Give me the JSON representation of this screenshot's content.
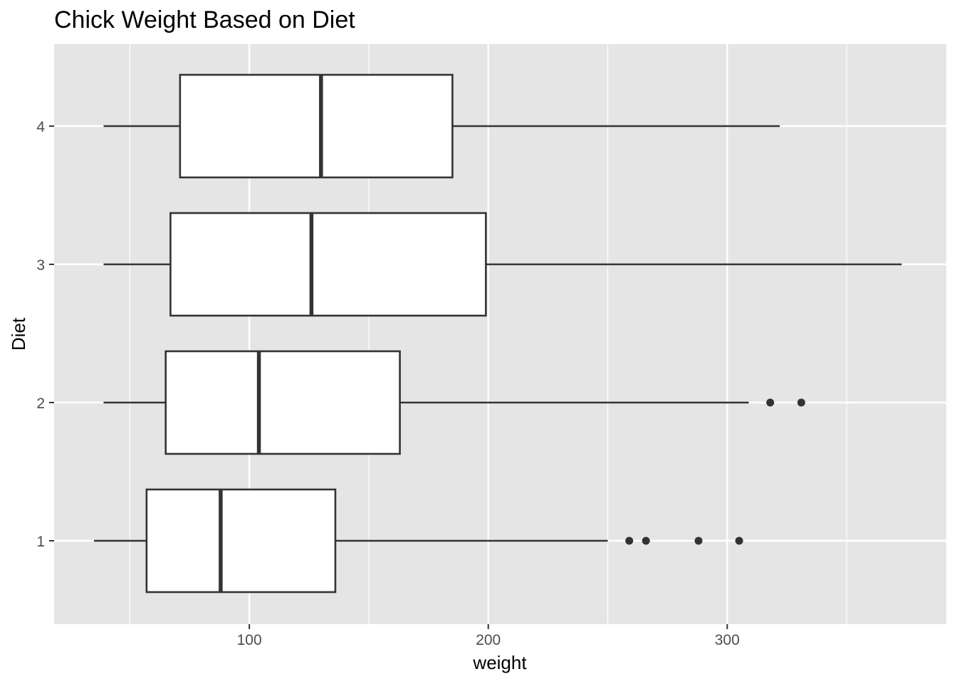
{
  "chart_data": {
    "type": "boxplot",
    "orientation": "horizontal",
    "title": "Chick Weight Based on Diet",
    "xlabel": "weight",
    "ylabel": "Diet",
    "xlim": [
      18.3,
      391.7
    ],
    "x_ticks": [
      100,
      200,
      300
    ],
    "x_minor_gridlines": [
      50,
      150,
      250,
      350
    ],
    "grid": true,
    "colors": {
      "panel_background": "#e5e5e5",
      "gridline": "#ffffff",
      "box_fill": "#ffffff",
      "box_stroke": "#333333",
      "tick_label": "#4d4d4d"
    },
    "categories": [
      "1",
      "2",
      "3",
      "4"
    ],
    "boxes": [
      {
        "diet": "1",
        "lower_whisker": 35,
        "q1": 57,
        "median": 88,
        "q3": 136,
        "upper_whisker": 250,
        "outliers": [
          259,
          266,
          288,
          305
        ]
      },
      {
        "diet": "2",
        "lower_whisker": 39,
        "q1": 65,
        "median": 104,
        "q3": 163,
        "upper_whisker": 309,
        "outliers": [
          318,
          331
        ]
      },
      {
        "diet": "3",
        "lower_whisker": 39,
        "q1": 67,
        "median": 126,
        "q3": 199,
        "upper_whisker": 373,
        "outliers": []
      },
      {
        "diet": "4",
        "lower_whisker": 39,
        "q1": 71,
        "median": 130,
        "q3": 185,
        "upper_whisker": 322,
        "outliers": []
      }
    ]
  }
}
